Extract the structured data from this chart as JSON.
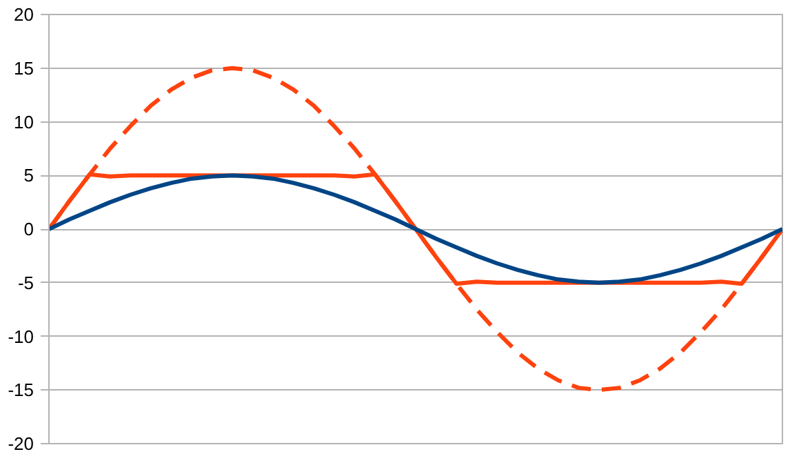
{
  "chart_data": {
    "type": "line",
    "categories": [
      null,
      null,
      null,
      null,
      null,
      null,
      null,
      null,
      null,
      null,
      null,
      null,
      null,
      null,
      null,
      null,
      null,
      null,
      null,
      null,
      null,
      null,
      null,
      null,
      null,
      null,
      null,
      null,
      null,
      null,
      null,
      null,
      null,
      null,
      null,
      null,
      null
    ],
    "series": [
      {
        "color": "#ff420e",
        "line_style": "dashed",
        "values": [
          0,
          2.6,
          5.1,
          7.5,
          9.6,
          11.5,
          13,
          14.1,
          14.8,
          15,
          14.8,
          14.1,
          13,
          11.5,
          9.6,
          7.5,
          5.1,
          2.6,
          0,
          -2.6,
          -5.1,
          -7.5,
          -9.6,
          -11.5,
          -13,
          -14.1,
          -14.8,
          -15,
          -14.8,
          -14.1,
          -13,
          -11.5,
          -9.6,
          -7.5,
          -5.1,
          -2.6,
          0
        ]
      },
      {
        "color": "#ff420e",
        "line_style": "solid",
        "values": [
          0,
          2.6,
          5.1,
          4.9,
          5,
          5,
          5,
          5,
          5,
          5,
          5,
          5,
          5,
          5,
          5,
          4.9,
          5.1,
          2.6,
          0,
          -2.6,
          -5.1,
          -4.9,
          -5,
          -5,
          -5,
          -5,
          -5,
          -5,
          -5,
          -5,
          -5,
          -5,
          -5,
          -4.9,
          -5.1,
          -2.6,
          0
        ]
      },
      {
        "color": "#004586",
        "line_style": "solid",
        "values": [
          0,
          0.9,
          1.7,
          2.5,
          3.2,
          3.8,
          4.3,
          4.7,
          4.9,
          5,
          4.9,
          4.7,
          4.3,
          3.8,
          3.2,
          2.5,
          1.7,
          0.9,
          0,
          -0.9,
          -1.7,
          -2.5,
          -3.2,
          -3.8,
          -4.3,
          -4.7,
          -4.9,
          -5,
          -4.9,
          -4.7,
          -4.3,
          -3.8,
          -3.2,
          -2.5,
          -1.7,
          -0.9,
          0
        ]
      }
    ],
    "ylim": [
      -20,
      20
    ],
    "yticks": [
      -20,
      -15,
      -10,
      -5,
      0,
      5,
      10,
      15,
      20
    ],
    "grid": "y",
    "tick_labels": "y",
    "marker": "none"
  }
}
